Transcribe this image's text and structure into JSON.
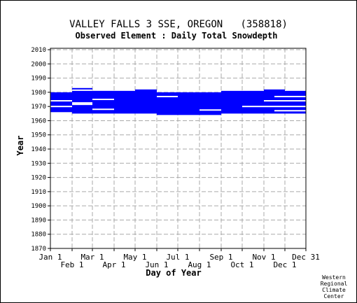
{
  "chart_data": {
    "type": "heatmap",
    "title": "VALLEY FALLS 3 SSE, OREGON   (358818)",
    "subtitle": "Observed Element : Daily Total Snowdepth",
    "xlabel": "Day of Year",
    "ylabel": "Year",
    "ylim": [
      1870,
      2011
    ],
    "xlim": [
      1,
      366
    ],
    "x_ticks": [
      {
        "label": "Jan 1",
        "day": 1,
        "row": 1
      },
      {
        "label": "Feb 1",
        "day": 32,
        "row": 2
      },
      {
        "label": "Mar 1",
        "day": 61,
        "row": 1
      },
      {
        "label": "Apr 1",
        "day": 92,
        "row": 2
      },
      {
        "label": "May 1",
        "day": 122,
        "row": 1
      },
      {
        "label": "Jun 1",
        "day": 153,
        "row": 2
      },
      {
        "label": "Jul 1",
        "day": 183,
        "row": 1
      },
      {
        "label": "Aug 1",
        "day": 214,
        "row": 2
      },
      {
        "label": "Sep 1",
        "day": 245,
        "row": 1
      },
      {
        "label": "Oct 1",
        "day": 275,
        "row": 2
      },
      {
        "label": "Nov 1",
        "day": 306,
        "row": 1
      },
      {
        "label": "Dec 1",
        "day": 336,
        "row": 2
      },
      {
        "label": "Dec 31",
        "day": 366,
        "row": 1
      }
    ],
    "y_ticks": [
      "1870",
      "1880",
      "1890",
      "1900",
      "1910",
      "1920",
      "1930",
      "1940",
      "1950",
      "1960",
      "1970",
      "1980",
      "1990",
      "2000",
      "2010"
    ],
    "grid": true,
    "color": "#0000ff",
    "data_blocks": [
      {
        "d0": 1,
        "d1": 32,
        "y0": 1966,
        "y1": 1980
      },
      {
        "d0": 32,
        "d1": 61,
        "y0": 1965,
        "y1": 1981
      },
      {
        "d0": 32,
        "d1": 61,
        "y0": 1982,
        "y1": 1983
      },
      {
        "d0": 61,
        "d1": 122,
        "y0": 1965,
        "y1": 1981
      },
      {
        "d0": 122,
        "d1": 153,
        "y0": 1965,
        "y1": 1982
      },
      {
        "d0": 153,
        "d1": 245,
        "y0": 1964,
        "y1": 1980
      },
      {
        "d0": 245,
        "d1": 306,
        "y0": 1965,
        "y1": 1981
      },
      {
        "d0": 306,
        "d1": 336,
        "y0": 1965,
        "y1": 1982
      },
      {
        "d0": 336,
        "d1": 366,
        "y0": 1965,
        "y1": 1981
      }
    ],
    "gaps": [
      {
        "d0": 1,
        "d1": 32,
        "y": 1974
      },
      {
        "d0": 1,
        "d1": 32,
        "y": 1970
      },
      {
        "d0": 32,
        "d1": 61,
        "y": 1971.5
      },
      {
        "d0": 32,
        "d1": 61,
        "y": 1972.5
      },
      {
        "d0": 61,
        "d1": 92,
        "y": 1975
      },
      {
        "d0": 61,
        "d1": 92,
        "y": 1968
      },
      {
        "d0": 153,
        "d1": 183,
        "y": 1977
      },
      {
        "d0": 214,
        "d1": 245,
        "y": 1967.5
      },
      {
        "d0": 275,
        "d1": 366,
        "y": 1970
      },
      {
        "d0": 306,
        "d1": 366,
        "y": 1974
      },
      {
        "d0": 321,
        "d1": 366,
        "y": 1977
      },
      {
        "d0": 321,
        "d1": 366,
        "y": 1967
      }
    ]
  },
  "credit": [
    "Western",
    "Regional",
    "Climate",
    "Center"
  ]
}
